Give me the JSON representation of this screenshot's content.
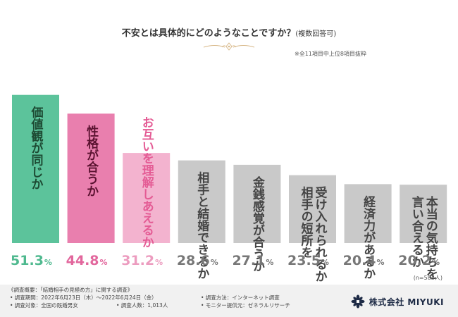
{
  "chart_data": {
    "type": "bar",
    "title": "不安とは具体的にどのようなことですか？",
    "subtitle": "(複数回答可)",
    "note": "※全11項目中上位8項目抜粋",
    "sample_size": "(n=583人)",
    "unit": "%",
    "ylim": [
      0,
      55
    ],
    "grid": false,
    "categories": [
      "価値観が同じか",
      "性格が合うか",
      "お互いを理解しあえるか",
      "相手と結婚できるか",
      "金銭感覚が合うか",
      "受け入れられるか相手の短所を",
      "経済力があるか",
      "本当の気持ちを言い合えるか"
    ],
    "label_lines": [
      [
        "価値観が同じか"
      ],
      [
        "性格が合うか"
      ],
      [
        "お互いを理解しあえるか"
      ],
      [
        "相手と結婚できるか"
      ],
      [
        "金銭感覚が合うか"
      ],
      [
        "受け入れられるか",
        "相手の短所を"
      ],
      [
        "経済力があるか"
      ],
      [
        "本当の気持ちを",
        "言い合えるか"
      ]
    ],
    "values": [
      51.3,
      44.8,
      31.2,
      28.6,
      27.1,
      23.5,
      20.4,
      20.2
    ],
    "colors": {
      "bar": [
        "#5cc39b",
        "#e97fae",
        "#f3b3cf",
        "#c9c9c9",
        "#c9c9c9",
        "#c9c9c9",
        "#c9c9c9",
        "#c9c9c9"
      ],
      "label": [
        "#1d4a33",
        "#5a1230",
        "#e45c95",
        "#444444",
        "#444444",
        "#444444",
        "#444444",
        "#444444"
      ],
      "value": [
        "#4fb98f",
        "#e2679d",
        "#ec9cbf",
        "#777777",
        "#777777",
        "#777777",
        "#777777",
        "#777777"
      ]
    }
  },
  "footer": {
    "survey_outline": "《調査概要：「結婚相手の見極め方」に関する調査》",
    "period": "• 調査期間：2022年6月23日（木）～2022年6月24日（金）",
    "method": "• 調査方法：インターネット調査",
    "target": "• 調査対象：全国の既婚男女",
    "count": "• 調査人数：1,013人",
    "provider": "• モニター提供元：ゼネラルリサーチ"
  },
  "brand": {
    "name": "株式会社 MIYUKI",
    "logo_icon": "miyuki-flower-logo-icon"
  }
}
